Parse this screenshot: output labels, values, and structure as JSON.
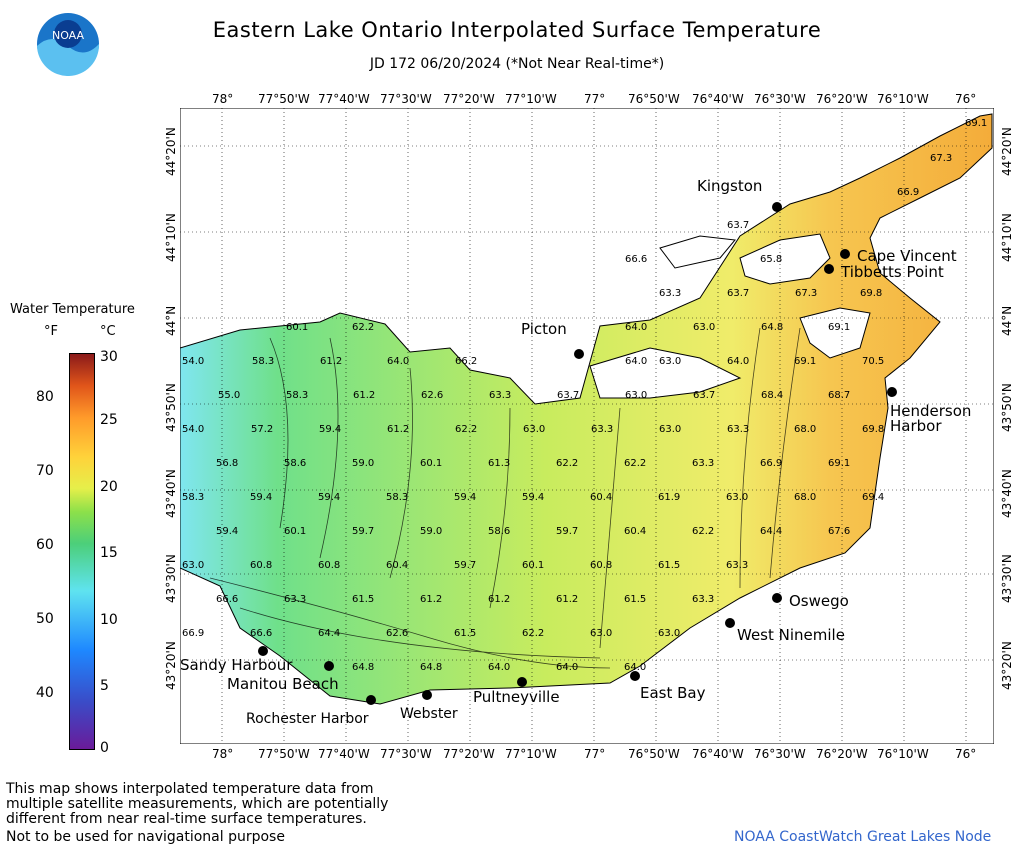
{
  "header": {
    "title": "Eastern Lake Ontario Interpolated Surface Temperature",
    "subtitle": "JD 172 06/20/2024 (*Not Near Real-time*)",
    "logo_text": "NOAA"
  },
  "legend": {
    "title": "Water Temperature",
    "unit_f": "°F",
    "unit_c": "°C",
    "f_ticks": [
      "80",
      "70",
      "60",
      "50",
      "40"
    ],
    "c_ticks": [
      "30",
      "25",
      "20",
      "15",
      "10",
      "5",
      "0"
    ]
  },
  "map": {
    "lon_labels": [
      "78°",
      "77°50'W",
      "77°40'W",
      "77°30'W",
      "77°20'W",
      "77°10'W",
      "77°",
      "76°50'W",
      "76°40'W",
      "76°30'W",
      "76°20'W",
      "76°10'W",
      "76°"
    ],
    "lat_labels": [
      "44°20'N",
      "44°10'N",
      "44°N",
      "43°50'N",
      "43°40'N",
      "43°30'N",
      "43°20'N"
    ],
    "places": [
      "Kingston",
      "Cape Vincent",
      "Tibbetts Point",
      "Picton",
      "Henderson",
      "Harbor",
      "Oswego",
      "West Ninemile",
      "Sandy Harbour",
      "Manitou Beach",
      "Rochester Harbor",
      "Webster",
      "Pultneyville",
      "East Bay"
    ],
    "temps": [
      "69.1",
      "67.3",
      "66.9",
      "63.7",
      "65.8",
      "66.6",
      "67.3",
      "69.8",
      "60.1",
      "62.2",
      "63.3",
      "63.7",
      "64.0",
      "63.0",
      "64.8",
      "69.1",
      "64.0",
      "58.3",
      "61.2",
      "64.0",
      "66.2",
      "63.0",
      "64.0",
      "69.1",
      "70.5",
      "55.0",
      "58.3",
      "61.2",
      "62.6",
      "63.3",
      "63.7",
      "63.0",
      "63.7",
      "68.4",
      "68.7",
      "54.0",
      "57.2",
      "59.4",
      "61.2",
      "62.2",
      "63.0",
      "63.3",
      "63.0",
      "63.3",
      "68.0",
      "69.8",
      "56.8",
      "58.6",
      "59.0",
      "60.1",
      "61.3",
      "62.2",
      "62.2",
      "63.3",
      "66.9",
      "69.1",
      "58.3",
      "59.4",
      "59.4",
      "58.3",
      "59.4",
      "59.4",
      "60.4",
      "61.9",
      "63.0",
      "68.0",
      "69.4",
      "59.4",
      "60.1",
      "59.7",
      "59.0",
      "58.6",
      "59.7",
      "60.4",
      "62.2",
      "64.4",
      "67.6",
      "63.0",
      "60.8",
      "60.8",
      "60.4",
      "59.7",
      "60.1",
      "60.8",
      "61.5",
      "63.3",
      "66.6",
      "63.3",
      "61.5",
      "61.2",
      "61.2",
      "61.2",
      "61.5",
      "63.3",
      "66.9",
      "66.6",
      "64.4",
      "62.6",
      "61.5",
      "62.2",
      "63.0",
      "63.0",
      "64.8",
      "64.8",
      "64.0",
      "64.0",
      "64.0",
      "54.0"
    ]
  },
  "footer": {
    "note_1": "This map shows interpolated temperature data from",
    "note_2": "multiple satellite measurements, which are potentially",
    "note_3": "different from near real-time surface temperatures.",
    "not_nav": "Not to be used for navigational purpose",
    "credit": "NOAA CoastWatch Great Lakes Node"
  },
  "colors": {
    "water_warm": "#f4b23a",
    "water_mid": "#e8ef6a",
    "water_cool": "#7fe08a",
    "water_cold": "#7fe6f0",
    "credit": "#3366cc"
  }
}
